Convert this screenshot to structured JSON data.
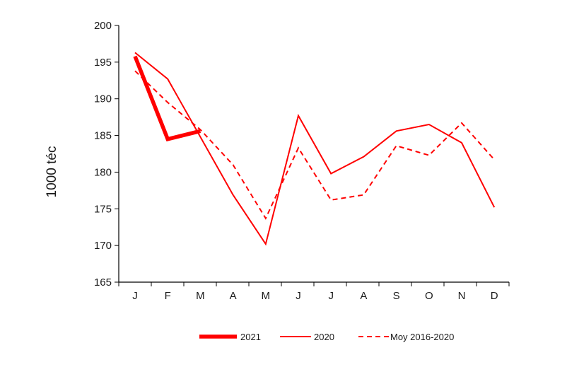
{
  "chart_data": {
    "type": "line",
    "title": "",
    "xlabel": "",
    "ylabel": "1000 téc",
    "ylim": [
      165,
      200
    ],
    "yticks": [
      165,
      170,
      175,
      180,
      185,
      190,
      195,
      200
    ],
    "categories": [
      "J",
      "F",
      "M",
      "A",
      "M",
      "J",
      "J",
      "A",
      "S",
      "O",
      "N",
      "D"
    ],
    "grid": false,
    "legend_position": "bottom",
    "series": [
      {
        "name": "2021",
        "style": "thick",
        "color": "#ff0000",
        "values": [
          195.8,
          184.5,
          185.6,
          null,
          null,
          null,
          null,
          null,
          null,
          null,
          null,
          null
        ]
      },
      {
        "name": "2020",
        "style": "solid",
        "color": "#ff0000",
        "values": [
          196.3,
          192.7,
          184.8,
          176.9,
          170.2,
          187.7,
          179.8,
          182.1,
          185.6,
          186.5,
          184.0,
          175.2
        ]
      },
      {
        "name": "Moy 2016-2020",
        "style": "dashed",
        "color": "#ff0000",
        "values": [
          193.8,
          189.5,
          185.8,
          181.0,
          173.7,
          183.3,
          176.2,
          176.9,
          183.6,
          182.3,
          186.7,
          181.7
        ]
      }
    ]
  }
}
